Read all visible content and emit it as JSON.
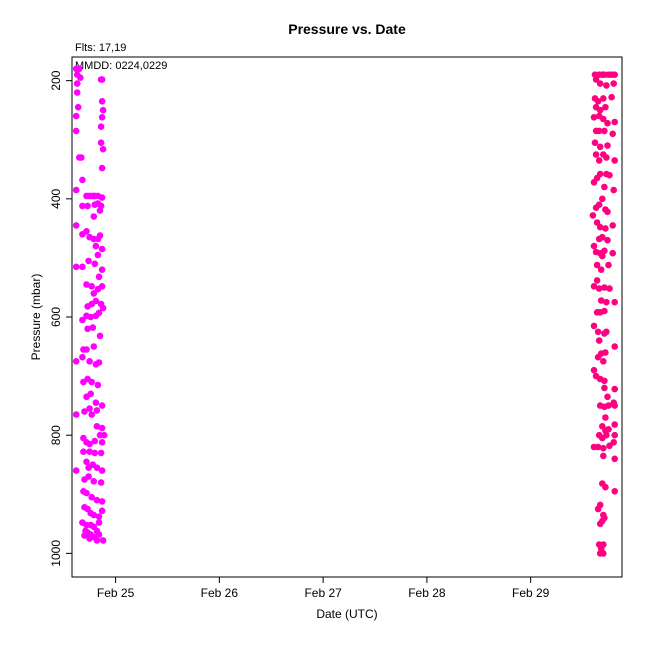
{
  "chart_data": {
    "type": "scatter",
    "title": "Pressure  vs. Date",
    "info_lines": [
      "Flts: 17,19",
      "MMDD: 0224,0229"
    ],
    "xlabel": "Date (UTC)",
    "ylabel": "Pressure (mbar)",
    "xlim": [
      24.58,
      29.88
    ],
    "ylim": [
      1040,
      160
    ],
    "y_inverted": true,
    "xticks": [
      {
        "value": 25,
        "label": "Feb 25"
      },
      {
        "value": 26,
        "label": "Feb 26"
      },
      {
        "value": 27,
        "label": "Feb 27"
      },
      {
        "value": 28,
        "label": "Feb 28"
      },
      {
        "value": 29,
        "label": "Feb 29"
      }
    ],
    "yticks": [
      200,
      400,
      600,
      800,
      1000
    ],
    "grid": false,
    "series": [
      {
        "color": "#ff00ff",
        "points": [
          [
            24.62,
            180
          ],
          [
            24.65,
            180
          ],
          [
            24.63,
            190
          ],
          [
            24.66,
            195
          ],
          [
            24.63,
            205
          ],
          [
            24.63,
            220
          ],
          [
            24.64,
            245
          ],
          [
            24.62,
            260
          ],
          [
            24.62,
            285
          ],
          [
            24.65,
            330
          ],
          [
            24.67,
            330
          ],
          [
            24.68,
            368
          ],
          [
            24.62,
            385
          ],
          [
            24.62,
            445
          ],
          [
            24.68,
            412
          ],
          [
            24.68,
            460
          ],
          [
            24.72,
            455
          ],
          [
            24.72,
            395
          ],
          [
            24.75,
            395
          ],
          [
            24.78,
            395
          ],
          [
            24.8,
            395
          ],
          [
            24.83,
            395
          ],
          [
            24.87,
            398
          ],
          [
            24.73,
            412
          ],
          [
            24.8,
            410
          ],
          [
            24.83,
            408
          ],
          [
            24.86,
            412
          ],
          [
            24.79,
            430
          ],
          [
            24.85,
            420
          ],
          [
            24.75,
            465
          ],
          [
            24.79,
            468
          ],
          [
            24.83,
            468
          ],
          [
            24.85,
            462
          ],
          [
            24.81,
            480
          ],
          [
            24.87,
            485
          ],
          [
            24.83,
            495
          ],
          [
            24.62,
            515
          ],
          [
            24.68,
            515
          ],
          [
            24.74,
            505
          ],
          [
            24.8,
            510
          ],
          [
            24.87,
            520
          ],
          [
            24.84,
            532
          ],
          [
            24.72,
            545
          ],
          [
            24.77,
            548
          ],
          [
            24.79,
            560
          ],
          [
            24.83,
            553
          ],
          [
            24.87,
            548
          ],
          [
            24.77,
            578
          ],
          [
            24.81,
            573
          ],
          [
            24.86,
            578
          ],
          [
            24.88,
            585
          ],
          [
            24.73,
            582
          ],
          [
            24.72,
            598
          ],
          [
            24.76,
            600
          ],
          [
            24.81,
            598
          ],
          [
            24.84,
            593
          ],
          [
            24.68,
            605
          ],
          [
            24.85,
            632
          ],
          [
            24.73,
            620
          ],
          [
            24.78,
            618
          ],
          [
            24.69,
            655
          ],
          [
            24.72,
            655
          ],
          [
            24.79,
            650
          ],
          [
            24.68,
            668
          ],
          [
            24.62,
            675
          ],
          [
            24.75,
            675
          ],
          [
            24.81,
            680
          ],
          [
            24.84,
            677
          ],
          [
            24.69,
            710
          ],
          [
            24.73,
            705
          ],
          [
            24.77,
            710
          ],
          [
            24.83,
            715
          ],
          [
            24.72,
            735
          ],
          [
            24.76,
            730
          ],
          [
            24.81,
            745
          ],
          [
            24.87,
            750
          ],
          [
            24.62,
            765
          ],
          [
            24.7,
            760
          ],
          [
            24.75,
            755
          ],
          [
            24.82,
            758
          ],
          [
            24.77,
            765
          ],
          [
            24.87,
            788
          ],
          [
            24.82,
            785
          ],
          [
            24.85,
            800
          ],
          [
            24.89,
            800
          ],
          [
            24.69,
            805
          ],
          [
            24.72,
            812
          ],
          [
            24.75,
            815
          ],
          [
            24.8,
            810
          ],
          [
            24.87,
            812
          ],
          [
            24.69,
            828
          ],
          [
            24.75,
            828
          ],
          [
            24.8,
            830
          ],
          [
            24.86,
            830
          ],
          [
            24.72,
            845
          ],
          [
            24.74,
            855
          ],
          [
            24.78,
            850
          ],
          [
            24.82,
            855
          ],
          [
            24.87,
            860
          ],
          [
            24.62,
            860
          ],
          [
            24.7,
            875
          ],
          [
            24.74,
            870
          ],
          [
            24.79,
            878
          ],
          [
            24.86,
            880
          ],
          [
            24.69,
            895
          ],
          [
            24.72,
            898
          ],
          [
            24.77,
            905
          ],
          [
            24.82,
            910
          ],
          [
            24.87,
            912
          ],
          [
            24.7,
            922
          ],
          [
            24.73,
            925
          ],
          [
            24.76,
            932
          ],
          [
            24.79,
            935
          ],
          [
            24.84,
            938
          ],
          [
            24.87,
            928
          ],
          [
            24.68,
            948
          ],
          [
            24.72,
            952
          ],
          [
            24.76,
            952
          ],
          [
            24.79,
            955
          ],
          [
            24.84,
            948
          ],
          [
            24.71,
            962
          ],
          [
            24.73,
            965
          ],
          [
            24.76,
            968
          ],
          [
            24.79,
            972
          ],
          [
            24.82,
            962
          ],
          [
            24.84,
            968
          ],
          [
            24.7,
            970
          ],
          [
            24.75,
            975
          ],
          [
            24.82,
            978
          ],
          [
            24.88,
            978
          ],
          [
            24.86,
            198
          ],
          [
            24.87,
            198
          ],
          [
            24.87,
            235
          ],
          [
            24.88,
            250
          ],
          [
            24.87,
            262
          ],
          [
            24.86,
            278
          ],
          [
            24.86,
            305
          ],
          [
            24.88,
            316
          ],
          [
            24.87,
            348
          ]
        ]
      },
      {
        "color": "#ff0080",
        "points": [
          [
            29.62,
            190
          ],
          [
            29.66,
            190
          ],
          [
            29.69,
            190
          ],
          [
            29.71,
            190
          ],
          [
            29.75,
            190
          ],
          [
            29.78,
            190
          ],
          [
            29.81,
            190
          ],
          [
            29.63,
            198
          ],
          [
            29.67,
            205
          ],
          [
            29.73,
            208
          ],
          [
            29.8,
            205
          ],
          [
            29.62,
            230
          ],
          [
            29.65,
            235
          ],
          [
            29.7,
            230
          ],
          [
            29.78,
            228
          ],
          [
            29.63,
            245
          ],
          [
            29.67,
            250
          ],
          [
            29.72,
            245
          ],
          [
            29.61,
            262
          ],
          [
            29.66,
            260
          ],
          [
            29.7,
            265
          ],
          [
            29.74,
            272
          ],
          [
            29.81,
            270
          ],
          [
            29.63,
            285
          ],
          [
            29.66,
            285
          ],
          [
            29.71,
            285
          ],
          [
            29.79,
            290
          ],
          [
            29.62,
            305
          ],
          [
            29.67,
            312
          ],
          [
            29.74,
            310
          ],
          [
            29.63,
            325
          ],
          [
            29.7,
            325
          ],
          [
            29.66,
            335
          ],
          [
            29.73,
            330
          ],
          [
            29.81,
            335
          ],
          [
            29.67,
            358
          ],
          [
            29.73,
            358
          ],
          [
            29.76,
            360
          ],
          [
            29.64,
            365
          ],
          [
            29.61,
            372
          ],
          [
            29.71,
            380
          ],
          [
            29.8,
            385
          ],
          [
            29.69,
            400
          ],
          [
            29.66,
            410
          ],
          [
            29.63,
            415
          ],
          [
            29.72,
            418
          ],
          [
            29.74,
            422
          ],
          [
            29.6,
            428
          ],
          [
            29.64,
            440
          ],
          [
            29.67,
            448
          ],
          [
            29.72,
            450
          ],
          [
            29.79,
            445
          ],
          [
            29.66,
            468
          ],
          [
            29.69,
            465
          ],
          [
            29.74,
            470
          ],
          [
            29.61,
            480
          ],
          [
            29.63,
            490
          ],
          [
            29.67,
            492
          ],
          [
            29.69,
            497
          ],
          [
            29.71,
            488
          ],
          [
            29.79,
            492
          ],
          [
            29.64,
            512
          ],
          [
            29.75,
            512
          ],
          [
            29.68,
            520
          ],
          [
            29.64,
            538
          ],
          [
            29.61,
            548
          ],
          [
            29.66,
            552
          ],
          [
            29.71,
            550
          ],
          [
            29.76,
            552
          ],
          [
            29.68,
            572
          ],
          [
            29.73,
            575
          ],
          [
            29.81,
            575
          ],
          [
            29.64,
            592
          ],
          [
            29.67,
            592
          ],
          [
            29.71,
            590
          ],
          [
            29.61,
            615
          ],
          [
            29.65,
            625
          ],
          [
            29.71,
            628
          ],
          [
            29.73,
            625
          ],
          [
            29.66,
            640
          ],
          [
            29.68,
            662
          ],
          [
            29.72,
            660
          ],
          [
            29.65,
            668
          ],
          [
            29.81,
            650
          ],
          [
            29.7,
            675
          ],
          [
            29.61,
            690
          ],
          [
            29.63,
            700
          ],
          [
            29.67,
            705
          ],
          [
            29.71,
            708
          ],
          [
            29.71,
            720
          ],
          [
            29.81,
            722
          ],
          [
            29.74,
            735
          ],
          [
            29.8,
            745
          ],
          [
            29.67,
            750
          ],
          [
            29.71,
            752
          ],
          [
            29.75,
            750
          ],
          [
            29.81,
            750
          ],
          [
            29.72,
            770
          ],
          [
            29.69,
            785
          ],
          [
            29.72,
            792
          ],
          [
            29.75,
            790
          ],
          [
            29.81,
            782
          ],
          [
            29.66,
            800
          ],
          [
            29.73,
            800
          ],
          [
            29.69,
            805
          ],
          [
            29.81,
            800
          ],
          [
            29.61,
            820
          ],
          [
            29.65,
            820
          ],
          [
            29.7,
            822
          ],
          [
            29.76,
            818
          ],
          [
            29.8,
            812
          ],
          [
            29.7,
            835
          ],
          [
            29.81,
            840
          ],
          [
            29.69,
            882
          ],
          [
            29.72,
            888
          ],
          [
            29.81,
            895
          ],
          [
            29.67,
            918
          ],
          [
            29.65,
            925
          ],
          [
            29.7,
            935
          ],
          [
            29.71,
            940
          ],
          [
            29.67,
            950
          ],
          [
            29.69,
            945
          ],
          [
            29.66,
            985
          ],
          [
            29.68,
            992
          ],
          [
            29.7,
            985
          ],
          [
            29.67,
            1000
          ],
          [
            29.7,
            1000
          ]
        ]
      }
    ]
  }
}
